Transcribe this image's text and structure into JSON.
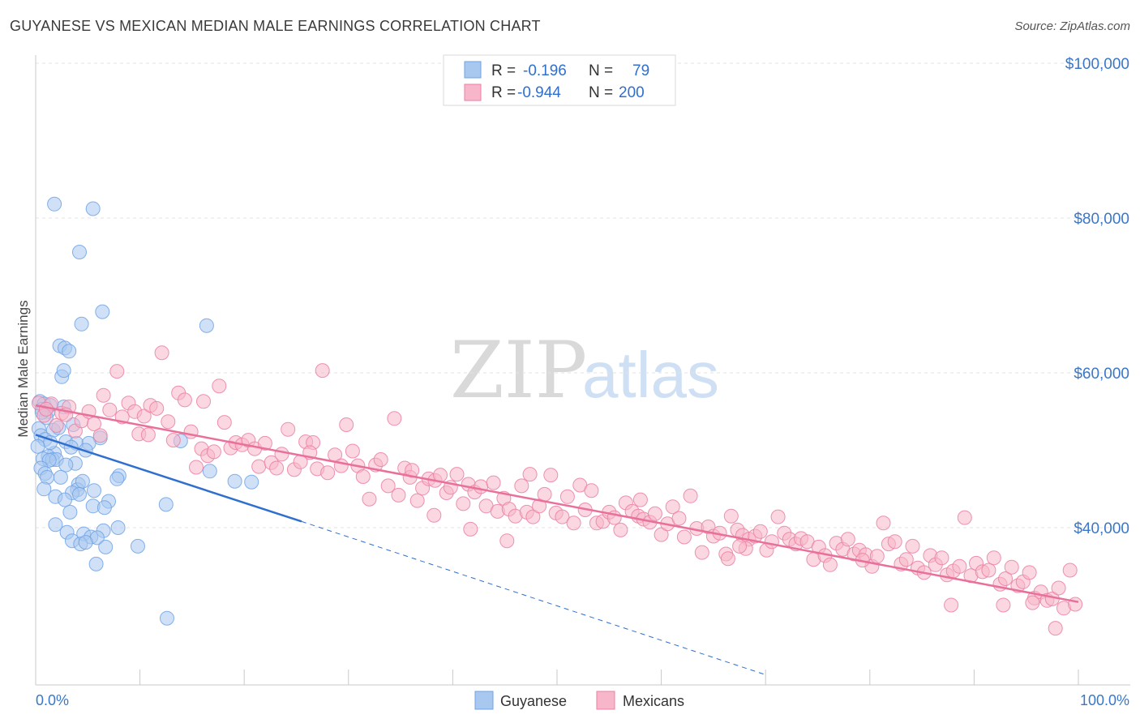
{
  "title": "GUYANESE VS MEXICAN MEDIAN MALE EARNINGS CORRELATION CHART",
  "source": "Source: ZipAtlas.com",
  "watermark": {
    "zip": "ZIP",
    "atlas": "atlas"
  },
  "legend_top": {
    "rows": [
      {
        "r_label": "R =",
        "r_value": "-0.196",
        "n_label": "N =",
        "n_value": "79",
        "color": "#a9c8f0"
      },
      {
        "r_label": "R =",
        "r_value": "-0.944",
        "n_label": "N =",
        "n_value": "200",
        "color": "#f7b6c9"
      }
    ]
  },
  "chart_data": {
    "type": "scatter",
    "xlabel": "",
    "ylabel": "Median Male Earnings",
    "xlim": [
      0,
      100
    ],
    "ylim": [
      22000,
      102000
    ],
    "x_tick_labels": [
      {
        "value": 0,
        "label": "0.0%"
      },
      {
        "value": 100,
        "label": "100.0%"
      }
    ],
    "y_ticks": [
      {
        "value": 40000,
        "label": "$40,000"
      },
      {
        "value": 60000,
        "label": "$60,000"
      },
      {
        "value": 80000,
        "label": "$80,000"
      },
      {
        "value": 100000,
        "label": "$100,000"
      }
    ],
    "grid": "horizontal dashed",
    "legend_position": "top-center",
    "series": [
      {
        "name": "Guyanese",
        "color": "#6fa3e6",
        "fill": "#a9c8f0",
        "trend": {
          "x": [
            0,
            25.5
          ],
          "y": [
            52000,
            40800
          ],
          "extended_to_x": 70,
          "extended_y": 21000,
          "line_color": "#2f6fcf"
        },
        "points": [
          [
            1.8,
            81.8
          ],
          [
            5.5,
            81.2
          ],
          [
            4.2,
            75.6
          ],
          [
            6.4,
            67.9
          ],
          [
            4.4,
            66.3
          ],
          [
            16.4,
            66.1
          ],
          [
            2.3,
            63.5
          ],
          [
            2.8,
            63.2
          ],
          [
            3.2,
            62.8
          ],
          [
            2.5,
            59.5
          ],
          [
            2.7,
            60.3
          ],
          [
            0.4,
            56.3
          ],
          [
            0.8,
            56.0
          ],
          [
            1.4,
            55.8
          ],
          [
            2.7,
            55.6
          ],
          [
            0.6,
            55.3
          ],
          [
            1.2,
            55.0
          ],
          [
            1.0,
            54.2
          ],
          [
            3.6,
            53.3
          ],
          [
            0.3,
            52.8
          ],
          [
            1.7,
            52.6
          ],
          [
            0.5,
            51.9
          ],
          [
            6.2,
            51.6
          ],
          [
            0.9,
            51.4
          ],
          [
            13.9,
            51.2
          ],
          [
            2.9,
            51.1
          ],
          [
            3.9,
            50.9
          ],
          [
            5.1,
            50.9
          ],
          [
            3.4,
            50.4
          ],
          [
            4.8,
            50.0
          ],
          [
            1.8,
            49.6
          ],
          [
            1.2,
            49.2
          ],
          [
            0.7,
            48.9
          ],
          [
            1.6,
            48.8
          ],
          [
            2.0,
            48.8
          ],
          [
            1.3,
            48.7
          ],
          [
            3.8,
            48.3
          ],
          [
            2.9,
            48.1
          ],
          [
            0.5,
            47.7
          ],
          [
            16.7,
            47.3
          ],
          [
            0.9,
            47.0
          ],
          [
            1.1,
            46.5
          ],
          [
            2.4,
            46.5
          ],
          [
            8.0,
            46.7
          ],
          [
            7.8,
            46.3
          ],
          [
            19.1,
            46.0
          ],
          [
            20.7,
            45.9
          ],
          [
            4.1,
            45.6
          ],
          [
            0.8,
            45.0
          ],
          [
            4.0,
            44.9
          ],
          [
            5.6,
            44.8
          ],
          [
            3.5,
            44.5
          ],
          [
            4.2,
            44.3
          ],
          [
            1.9,
            44.0
          ],
          [
            2.8,
            43.6
          ],
          [
            7.0,
            43.4
          ],
          [
            12.5,
            43.0
          ],
          [
            5.5,
            42.8
          ],
          [
            6.6,
            42.6
          ],
          [
            3.3,
            42.0
          ],
          [
            1.9,
            40.4
          ],
          [
            7.9,
            40.0
          ],
          [
            6.5,
            39.6
          ],
          [
            3.0,
            39.4
          ],
          [
            4.6,
            39.2
          ],
          [
            5.3,
            38.8
          ],
          [
            5.9,
            38.7
          ],
          [
            3.5,
            38.3
          ],
          [
            4.3,
            37.9
          ],
          [
            4.8,
            38.1
          ],
          [
            9.8,
            37.6
          ],
          [
            6.7,
            37.5
          ],
          [
            5.8,
            35.3
          ],
          [
            12.6,
            28.3
          ],
          [
            0.6,
            54.9
          ],
          [
            1.4,
            51.0
          ],
          [
            2.2,
            52.9
          ],
          [
            4.5,
            46.0
          ],
          [
            0.2,
            50.5
          ]
        ]
      },
      {
        "name": "Mexicans",
        "color": "#ec7fa3",
        "fill": "#f7b6c9",
        "trend": {
          "x": [
            0,
            100
          ],
          "y": [
            55800,
            30400
          ],
          "line_color": "#e8709a"
        },
        "points": [
          [
            0.3,
            56.1
          ],
          [
            0.8,
            54.5
          ],
          [
            1.5,
            56.0
          ],
          [
            2.0,
            53.2
          ],
          [
            2.5,
            54.8
          ],
          [
            3.2,
            55.6
          ],
          [
            3.8,
            52.5
          ],
          [
            4.4,
            53.8
          ],
          [
            5.1,
            55.0
          ],
          [
            5.6,
            53.4
          ],
          [
            6.2,
            51.9
          ],
          [
            6.5,
            57.1
          ],
          [
            7.1,
            55.2
          ],
          [
            7.8,
            60.2
          ],
          [
            8.3,
            54.3
          ],
          [
            8.9,
            56.1
          ],
          [
            9.5,
            55.0
          ],
          [
            9.9,
            52.1
          ],
          [
            10.4,
            54.4
          ],
          [
            11.0,
            55.8
          ],
          [
            11.6,
            55.4
          ],
          [
            12.1,
            62.6
          ],
          [
            12.7,
            53.7
          ],
          [
            13.2,
            51.3
          ],
          [
            13.7,
            57.4
          ],
          [
            14.3,
            56.5
          ],
          [
            14.9,
            52.4
          ],
          [
            15.4,
            47.8
          ],
          [
            15.9,
            50.2
          ],
          [
            16.5,
            49.3
          ],
          [
            17.1,
            49.8
          ],
          [
            17.6,
            58.3
          ],
          [
            18.1,
            53.6
          ],
          [
            18.7,
            50.3
          ],
          [
            19.2,
            51.0
          ],
          [
            19.8,
            50.7
          ],
          [
            20.4,
            51.3
          ],
          [
            21.0,
            50.2
          ],
          [
            21.4,
            47.9
          ],
          [
            22.0,
            50.9
          ],
          [
            22.6,
            48.4
          ],
          [
            23.1,
            47.7
          ],
          [
            23.6,
            49.5
          ],
          [
            24.2,
            52.7
          ],
          [
            24.8,
            47.5
          ],
          [
            25.4,
            48.5
          ],
          [
            25.9,
            51.1
          ],
          [
            26.6,
            51.0
          ],
          [
            27.0,
            47.6
          ],
          [
            27.5,
            60.3
          ],
          [
            28.0,
            47.1
          ],
          [
            28.7,
            49.4
          ],
          [
            29.3,
            48.0
          ],
          [
            29.8,
            53.3
          ],
          [
            30.4,
            49.9
          ],
          [
            30.9,
            48.0
          ],
          [
            31.4,
            46.6
          ],
          [
            32.0,
            43.7
          ],
          [
            32.6,
            48.1
          ],
          [
            33.1,
            48.8
          ],
          [
            33.8,
            45.4
          ],
          [
            34.4,
            54.1
          ],
          [
            34.8,
            44.2
          ],
          [
            35.4,
            47.7
          ],
          [
            35.9,
            46.5
          ],
          [
            36.6,
            43.5
          ],
          [
            37.1,
            45.1
          ],
          [
            37.7,
            46.3
          ],
          [
            38.3,
            46.1
          ],
          [
            38.8,
            46.8
          ],
          [
            39.4,
            44.5
          ],
          [
            39.8,
            45.2
          ],
          [
            40.4,
            46.9
          ],
          [
            41.0,
            43.1
          ],
          [
            41.5,
            45.6
          ],
          [
            42.1,
            44.6
          ],
          [
            42.7,
            45.3
          ],
          [
            43.2,
            42.8
          ],
          [
            43.9,
            45.8
          ],
          [
            44.3,
            42.1
          ],
          [
            44.9,
            43.8
          ],
          [
            45.4,
            42.4
          ],
          [
            46.0,
            41.5
          ],
          [
            46.6,
            45.4
          ],
          [
            47.1,
            42.0
          ],
          [
            47.7,
            41.4
          ],
          [
            48.3,
            42.8
          ],
          [
            48.8,
            44.3
          ],
          [
            49.4,
            46.8
          ],
          [
            49.9,
            41.9
          ],
          [
            50.5,
            41.4
          ],
          [
            51.0,
            44.0
          ],
          [
            51.6,
            40.6
          ],
          [
            52.2,
            45.5
          ],
          [
            52.7,
            42.3
          ],
          [
            53.3,
            44.8
          ],
          [
            53.8,
            40.6
          ],
          [
            54.4,
            40.8
          ],
          [
            55.0,
            42.0
          ],
          [
            55.5,
            41.3
          ],
          [
            56.1,
            39.7
          ],
          [
            56.6,
            43.2
          ],
          [
            57.2,
            42.1
          ],
          [
            57.8,
            41.5
          ],
          [
            58.3,
            41.1
          ],
          [
            58.9,
            40.7
          ],
          [
            59.4,
            41.8
          ],
          [
            60.0,
            39.1
          ],
          [
            60.6,
            40.5
          ],
          [
            61.1,
            42.7
          ],
          [
            61.7,
            41.2
          ],
          [
            62.2,
            38.8
          ],
          [
            62.8,
            44.1
          ],
          [
            63.4,
            39.9
          ],
          [
            63.9,
            36.8
          ],
          [
            64.5,
            40.1
          ],
          [
            65.0,
            38.9
          ],
          [
            65.6,
            39.3
          ],
          [
            66.2,
            36.6
          ],
          [
            66.7,
            41.5
          ],
          [
            67.3,
            39.7
          ],
          [
            67.8,
            39.0
          ],
          [
            68.4,
            38.5
          ],
          [
            69.0,
            38.9
          ],
          [
            69.5,
            39.5
          ],
          [
            70.1,
            37.1
          ],
          [
            70.6,
            38.2
          ],
          [
            71.2,
            41.4
          ],
          [
            71.8,
            39.3
          ],
          [
            72.3,
            38.5
          ],
          [
            72.9,
            37.9
          ],
          [
            73.4,
            38.6
          ],
          [
            74.0,
            38.2
          ],
          [
            74.6,
            35.9
          ],
          [
            75.1,
            37.5
          ],
          [
            75.7,
            36.4
          ],
          [
            76.2,
            35.2
          ],
          [
            76.8,
            38.0
          ],
          [
            77.4,
            37.2
          ],
          [
            77.9,
            38.5
          ],
          [
            78.5,
            36.6
          ],
          [
            79.0,
            37.1
          ],
          [
            79.6,
            36.5
          ],
          [
            80.2,
            35.0
          ],
          [
            80.7,
            36.3
          ],
          [
            81.3,
            40.6
          ],
          [
            81.8,
            37.9
          ],
          [
            82.4,
            38.2
          ],
          [
            83.0,
            35.3
          ],
          [
            83.5,
            35.9
          ],
          [
            84.1,
            37.6
          ],
          [
            84.6,
            34.8
          ],
          [
            85.2,
            34.2
          ],
          [
            85.8,
            36.4
          ],
          [
            86.3,
            35.2
          ],
          [
            86.9,
            36.1
          ],
          [
            87.4,
            33.9
          ],
          [
            88.0,
            34.4
          ],
          [
            88.6,
            35.0
          ],
          [
            89.1,
            41.3
          ],
          [
            89.7,
            33.8
          ],
          [
            90.2,
            35.4
          ],
          [
            90.8,
            34.3
          ],
          [
            91.4,
            34.5
          ],
          [
            91.9,
            36.1
          ],
          [
            92.5,
            32.7
          ],
          [
            93.0,
            33.4
          ],
          [
            93.6,
            34.9
          ],
          [
            94.2,
            32.5
          ],
          [
            94.7,
            33.0
          ],
          [
            95.3,
            34.2
          ],
          [
            95.8,
            30.9
          ],
          [
            96.4,
            31.7
          ],
          [
            97.0,
            30.6
          ],
          [
            97.5,
            30.8
          ],
          [
            98.1,
            32.2
          ],
          [
            98.6,
            29.6
          ],
          [
            99.2,
            34.5
          ],
          [
            99.7,
            30.1
          ],
          [
            2.9,
            54.6
          ],
          [
            10.8,
            52.0
          ],
          [
            16.1,
            56.3
          ],
          [
            26.3,
            49.7
          ],
          [
            36.1,
            47.4
          ],
          [
            47.4,
            46.9
          ],
          [
            58.0,
            43.6
          ],
          [
            68.1,
            37.3
          ],
          [
            79.3,
            35.8
          ],
          [
            87.8,
            30.0
          ],
          [
            92.8,
            30.0
          ],
          [
            95.6,
            30.3
          ],
          [
            97.8,
            27.0
          ],
          [
            1.0,
            55.3
          ],
          [
            66.4,
            36.0
          ],
          [
            67.5,
            37.6
          ],
          [
            45.2,
            38.3
          ],
          [
            38.2,
            41.6
          ],
          [
            41.7,
            39.8
          ]
        ]
      }
    ]
  },
  "bottom_legend": [
    {
      "label": "Guyanese",
      "color": "#a9c8f0"
    },
    {
      "label": "Mexicans",
      "color": "#f7b6c9"
    }
  ]
}
